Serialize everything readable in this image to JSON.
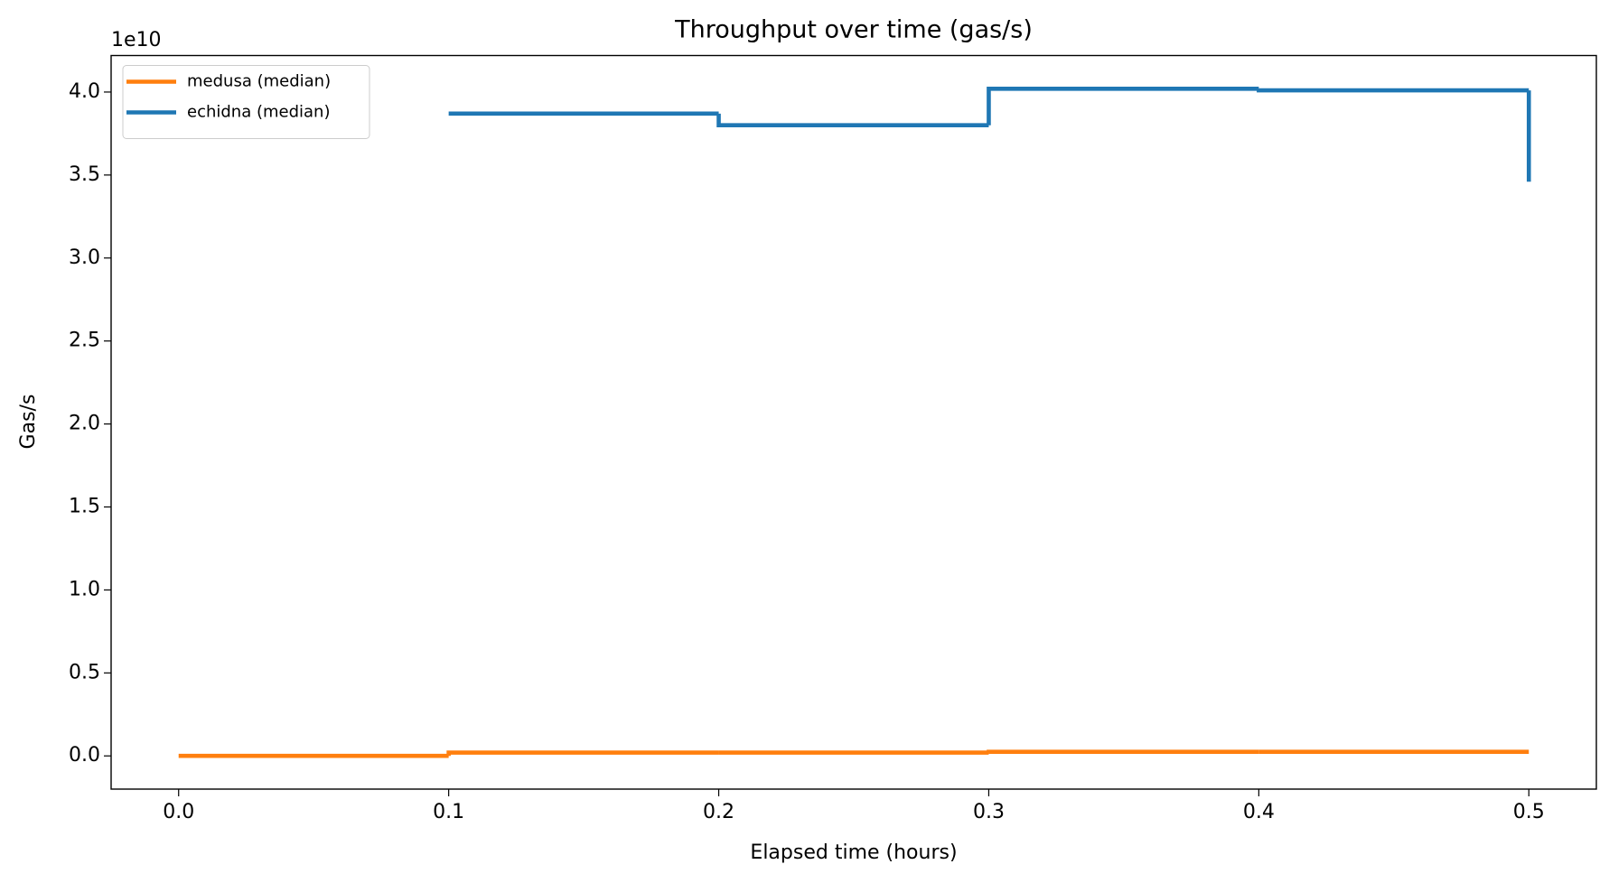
{
  "chart_data": {
    "type": "step",
    "title": "Throughput over time (gas/s)",
    "x_label": "Elapsed time (hours)",
    "y_label": "Gas/s",
    "y_offset_label": "1e10",
    "xlim": [
      -0.025,
      0.525
    ],
    "ylim": [
      -0.2,
      4.22
    ],
    "xticks": [
      {
        "value": 0,
        "label": "0.0"
      },
      0.1,
      0.2,
      0.3,
      0.4,
      0.5
    ],
    "yticks": [
      {
        "value": 0,
        "label": "0.0"
      },
      0.5,
      {
        "value": 1,
        "label": "1.0"
      },
      1.5,
      {
        "value": 2,
        "label": "2.0"
      },
      2.5,
      {
        "value": 3,
        "label": "3.0"
      },
      3.5,
      {
        "value": 4,
        "label": "4.0"
      }
    ],
    "grid": false,
    "legend_position": "upper-left",
    "series": [
      {
        "name": "medusa (median)",
        "color": "#ff7f0e",
        "x": [
          0,
          0.1,
          0.2,
          0.3,
          0.4,
          0.5
        ],
        "values": [
          0,
          0.02,
          0.02,
          0.025,
          0.025,
          0.025
        ]
      },
      {
        "name": "echidna (median)",
        "color": "#1f77b4",
        "x": [
          0.1,
          0.2,
          0.3,
          0.4,
          0.5
        ],
        "values": [
          3.87,
          3.8,
          4.02,
          4.01,
          3.46
        ]
      }
    ]
  }
}
